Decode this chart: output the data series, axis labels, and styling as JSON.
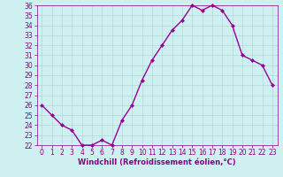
{
  "x": [
    0,
    1,
    2,
    3,
    4,
    5,
    6,
    7,
    8,
    9,
    10,
    11,
    12,
    13,
    14,
    15,
    16,
    17,
    18,
    19,
    20,
    21,
    22,
    23
  ],
  "y": [
    26,
    25,
    24,
    23.5,
    22,
    22,
    22.5,
    22,
    24.5,
    26,
    28.5,
    30.5,
    32,
    33.5,
    34.5,
    36,
    35.5,
    36,
    35.5,
    34,
    31,
    30.5,
    30,
    28
  ],
  "line_color": "#990099",
  "marker": "D",
  "marker_size": 2,
  "bg_color": "#cff0f0",
  "grid_color": "#b0d8d8",
  "xlabel": "Windchill (Refroidissement éolien,°C)",
  "xlabel_color": "#880088",
  "tick_color": "#880088",
  "ylim": [
    22,
    36
  ],
  "xlim": [
    -0.5,
    23.5
  ],
  "yticks": [
    22,
    23,
    24,
    25,
    26,
    27,
    28,
    29,
    30,
    31,
    32,
    33,
    34,
    35,
    36
  ],
  "xticks": [
    0,
    1,
    2,
    3,
    4,
    5,
    6,
    7,
    8,
    9,
    10,
    11,
    12,
    13,
    14,
    15,
    16,
    17,
    18,
    19,
    20,
    21,
    22,
    23
  ],
  "tick_fontsize": 5.5,
  "xlabel_fontsize": 6.0,
  "linewidth": 1.0
}
